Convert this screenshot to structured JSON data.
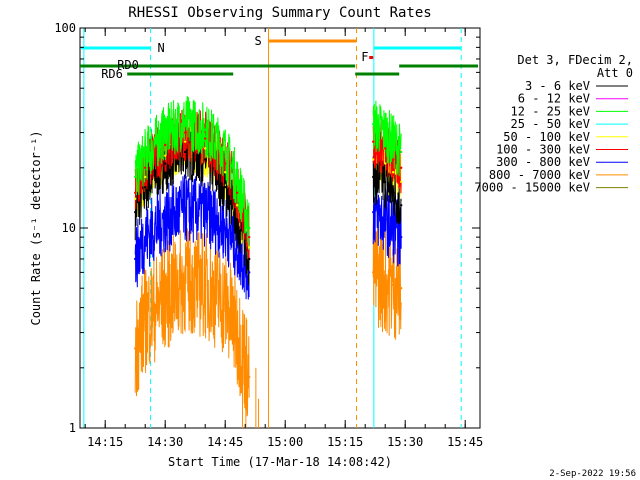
{
  "chart_data": {
    "type": "line",
    "title": "RHESSI Observing Summary Count Rates",
    "xlabel": "Start Time (17-Mar-18 14:08:42)",
    "ylabel": "Count Rate (s⁻¹ detector⁻¹)",
    "y_scale": "log",
    "ylim": [
      1,
      100
    ],
    "xlim": [
      "14:08:42",
      "15:48:42"
    ],
    "x_ticks": [
      "14:15",
      "14:30",
      "14:45",
      "15:00",
      "15:15",
      "15:30",
      "15:45"
    ],
    "y_ticks": [
      "1",
      "10",
      "100"
    ],
    "legend_header": [
      "Det 3, FDecim 2,",
      "Att 0"
    ],
    "legend_position": "right",
    "series": [
      {
        "name": "3 - 6 keV",
        "color": "#000000",
        "values": [
          {
            "x": "14:22:30",
            "y": 12
          },
          {
            "x": "14:25:00",
            "y": 16
          },
          {
            "x": "14:30:00",
            "y": 21
          },
          {
            "x": "14:35:00",
            "y": 24
          },
          {
            "x": "14:40:00",
            "y": 22
          },
          {
            "x": "14:45:00",
            "y": 16
          },
          {
            "x": "14:48:00",
            "y": 11
          },
          {
            "x": "14:51:00",
            "y": 7
          },
          {
            "x": "15:22:00",
            "y": 18
          },
          {
            "x": "15:25:00",
            "y": 17
          },
          {
            "x": "15:27:00",
            "y": 15
          },
          {
            "x": "15:29:00",
            "y": 13
          }
        ]
      },
      {
        "name": "6 - 12 keV",
        "color": "#ff00ff",
        "values": []
      },
      {
        "name": "12 - 25 keV",
        "color": "#00ff00",
        "values": [
          {
            "x": "14:22:30",
            "y": 18
          },
          {
            "x": "14:25:00",
            "y": 23
          },
          {
            "x": "14:30:00",
            "y": 30
          },
          {
            "x": "14:35:00",
            "y": 34
          },
          {
            "x": "14:40:00",
            "y": 31
          },
          {
            "x": "14:45:00",
            "y": 24
          },
          {
            "x": "14:48:00",
            "y": 17
          },
          {
            "x": "14:51:00",
            "y": 10
          },
          {
            "x": "15:22:00",
            "y": 33
          },
          {
            "x": "15:25:00",
            "y": 30
          },
          {
            "x": "15:27:00",
            "y": 27
          },
          {
            "x": "15:29:00",
            "y": 24
          }
        ]
      },
      {
        "name": "25 - 50 keV",
        "color": "#00ffff",
        "values": []
      },
      {
        "name": "50 - 100 keV",
        "color": "#ffff00",
        "values": [
          {
            "x": "14:22:30",
            "y": 14
          },
          {
            "x": "14:25:00",
            "y": 18
          },
          {
            "x": "14:30:00",
            "y": 23
          },
          {
            "x": "14:35:00",
            "y": 27
          },
          {
            "x": "14:40:00",
            "y": 25
          },
          {
            "x": "14:45:00",
            "y": 19
          },
          {
            "x": "14:48:00",
            "y": 13
          },
          {
            "x": "14:51:00",
            "y": 8
          },
          {
            "x": "15:22:00",
            "y": 22
          },
          {
            "x": "15:25:00",
            "y": 21
          },
          {
            "x": "15:27:00",
            "y": 19
          },
          {
            "x": "15:29:00",
            "y": 17
          }
        ]
      },
      {
        "name": "100 - 300 keV",
        "color": "#ff0000",
        "values": [
          {
            "x": "14:22:30",
            "y": 15
          },
          {
            "x": "14:25:00",
            "y": 20
          },
          {
            "x": "14:30:00",
            "y": 26
          },
          {
            "x": "14:35:00",
            "y": 30
          },
          {
            "x": "14:40:00",
            "y": 28
          },
          {
            "x": "14:45:00",
            "y": 21
          },
          {
            "x": "14:48:00",
            "y": 15
          },
          {
            "x": "14:51:00",
            "y": 9
          },
          {
            "x": "15:22:00",
            "y": 27
          },
          {
            "x": "15:25:00",
            "y": 25
          },
          {
            "x": "15:27:00",
            "y": 22
          },
          {
            "x": "15:29:00",
            "y": 20
          }
        ]
      },
      {
        "name": "300 - 800 keV",
        "color": "#0000ff",
        "values": [
          {
            "x": "14:22:30",
            "y": 7
          },
          {
            "x": "14:25:00",
            "y": 9
          },
          {
            "x": "14:30:00",
            "y": 11
          },
          {
            "x": "14:35:00",
            "y": 12.5
          },
          {
            "x": "14:40:00",
            "y": 12
          },
          {
            "x": "14:45:00",
            "y": 10
          },
          {
            "x": "14:48:00",
            "y": 8
          },
          {
            "x": "14:51:00",
            "y": 6
          },
          {
            "x": "15:22:00",
            "y": 12
          },
          {
            "x": "15:25:00",
            "y": 11
          },
          {
            "x": "15:27:00",
            "y": 10
          },
          {
            "x": "15:29:00",
            "y": 9
          }
        ]
      },
      {
        "name": "800 - 7000 keV",
        "color": "#ff8c00",
        "values": [
          {
            "x": "14:22:30",
            "y": 2.5
          },
          {
            "x": "14:25:00",
            "y": 3.5
          },
          {
            "x": "14:30:00",
            "y": 4.5
          },
          {
            "x": "14:35:00",
            "y": 5.5
          },
          {
            "x": "14:40:00",
            "y": 5.2
          },
          {
            "x": "14:45:00",
            "y": 4.2
          },
          {
            "x": "14:48:00",
            "y": 3
          },
          {
            "x": "14:51:00",
            "y": 1.8
          },
          {
            "x": "15:22:00",
            "y": 6
          },
          {
            "x": "15:25:00",
            "y": 5.5
          },
          {
            "x": "15:27:00",
            "y": 5.2
          },
          {
            "x": "15:29:00",
            "y": 5
          }
        ]
      },
      {
        "name": "7000 - 15000 keV",
        "color": "#808000",
        "values": []
      }
    ],
    "annotations": [
      {
        "label": "N",
        "color": "#00ffff"
      },
      {
        "label": "S",
        "color": "#ff8c00"
      },
      {
        "label": "F",
        "color": "#ff0000"
      },
      {
        "label": "RD0",
        "color": "#008000"
      },
      {
        "label": "RD6",
        "color": "#008000"
      }
    ],
    "timestamp": "2-Sep-2022 19:56"
  }
}
